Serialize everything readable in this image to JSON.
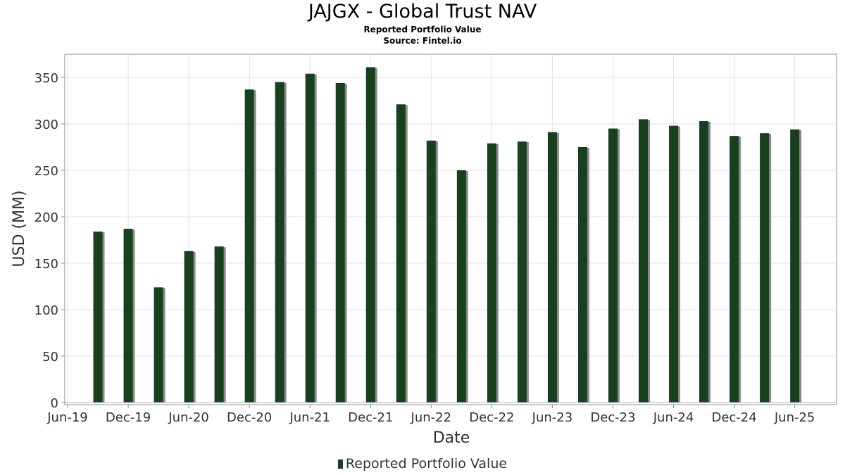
{
  "chart_data": {
    "type": "bar",
    "title": "JAJGX - Global Trust NAV",
    "subtitle": "Reported Portfolio Value",
    "source": "Source: Fintel.io",
    "xlabel": "Date",
    "ylabel": "USD (MM)",
    "x_ticks": [
      "Jun-19",
      "Dec-19",
      "Jun-20",
      "Dec-20",
      "Jun-21",
      "Dec-21",
      "Jun-22",
      "Dec-22",
      "Jun-23",
      "Dec-23",
      "Jun-24",
      "Dec-24",
      "Jun-25"
    ],
    "y_ticks": [
      0,
      50,
      100,
      150,
      200,
      250,
      300,
      350
    ],
    "ylim": [
      0,
      375
    ],
    "xlim": [
      "2019-06",
      "2025-10"
    ],
    "grid": true,
    "legend_position": "bottom",
    "colors": {
      "bar": "#17401f",
      "shadow": "#8a8a8a"
    },
    "series": [
      {
        "name": "Reported Portfolio Value",
        "points": [
          {
            "date": "2019-09",
            "value": 184
          },
          {
            "date": "2019-12",
            "value": 187
          },
          {
            "date": "2020-03",
            "value": 124
          },
          {
            "date": "2020-06",
            "value": 163
          },
          {
            "date": "2020-09",
            "value": 168
          },
          {
            "date": "2020-12",
            "value": 337
          },
          {
            "date": "2021-03",
            "value": 345
          },
          {
            "date": "2021-06",
            "value": 354
          },
          {
            "date": "2021-09",
            "value": 344
          },
          {
            "date": "2021-12",
            "value": 361
          },
          {
            "date": "2022-03",
            "value": 321
          },
          {
            "date": "2022-06",
            "value": 282
          },
          {
            "date": "2022-09",
            "value": 250
          },
          {
            "date": "2022-12",
            "value": 279
          },
          {
            "date": "2023-03",
            "value": 281
          },
          {
            "date": "2023-06",
            "value": 291
          },
          {
            "date": "2023-09",
            "value": 275
          },
          {
            "date": "2023-12",
            "value": 295
          },
          {
            "date": "2024-03",
            "value": 305
          },
          {
            "date": "2024-06",
            "value": 298
          },
          {
            "date": "2024-09",
            "value": 303
          },
          {
            "date": "2024-12",
            "value": 287
          },
          {
            "date": "2025-03",
            "value": 290
          },
          {
            "date": "2025-06",
            "value": 294
          }
        ]
      }
    ]
  }
}
